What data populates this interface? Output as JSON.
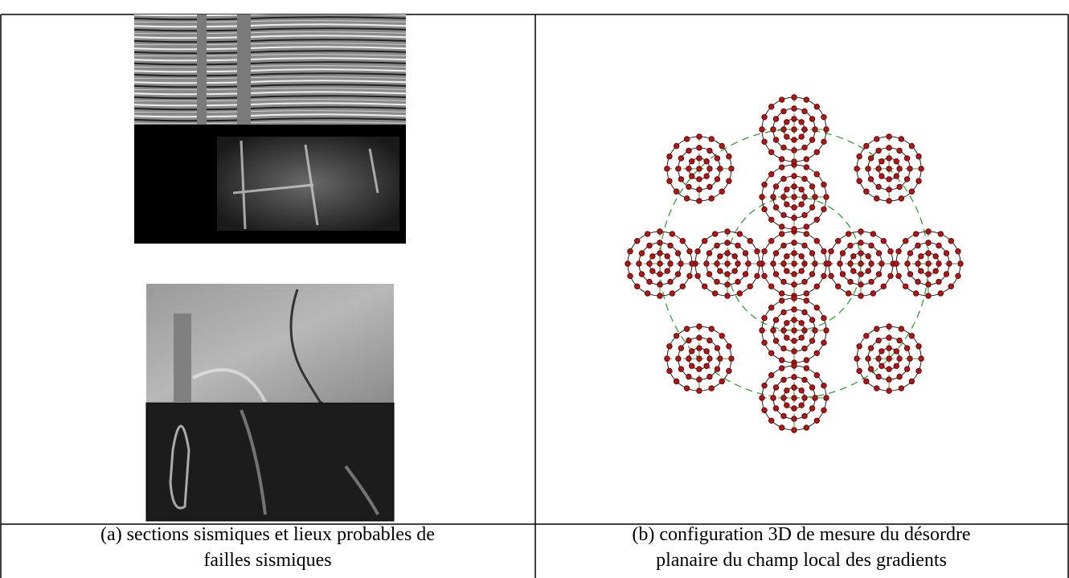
{
  "captions": [
    [
      "(a) sections sismiques et lieux probables de",
      "failles sismiques"
    ],
    [
      "(b) configuration 3D de mesure du désordre",
      "planaire du champ local des gradients"
    ]
  ]
}
